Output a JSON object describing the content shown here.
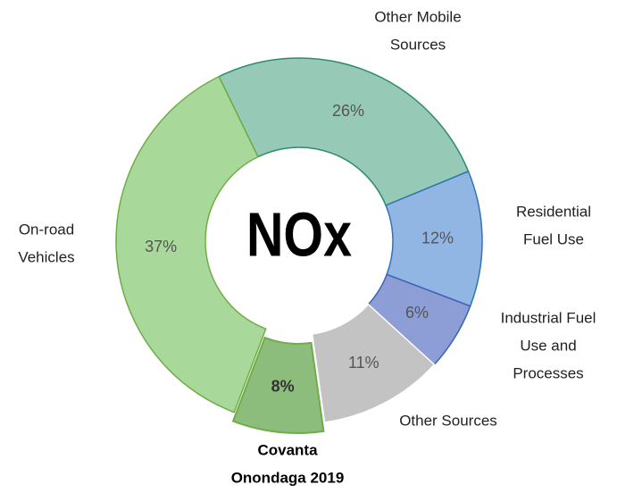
{
  "chart_data": {
    "type": "donut",
    "center_label": "NOx",
    "categories": [
      [
        "Other Mobile",
        "Sources"
      ],
      [
        "Residential",
        "Fuel Use"
      ],
      [
        "Industrial Fuel",
        "Use and",
        "Processes"
      ],
      [
        "Other Sources"
      ],
      [
        "Covanta",
        "Onondaga 2019"
      ],
      [
        "On-road",
        "Vehicles"
      ]
    ],
    "values": [
      26,
      12,
      6,
      11,
      8,
      37
    ],
    "value_labels": [
      "26%",
      "12%",
      "6%",
      "11%",
      "8%",
      "37%"
    ],
    "colors": [
      "#97c9b7",
      "#92b6e4",
      "#8d9dd6",
      "#c3c3c3",
      "#8dbd7c",
      "#a8d89a"
    ],
    "highlight": 4
  }
}
